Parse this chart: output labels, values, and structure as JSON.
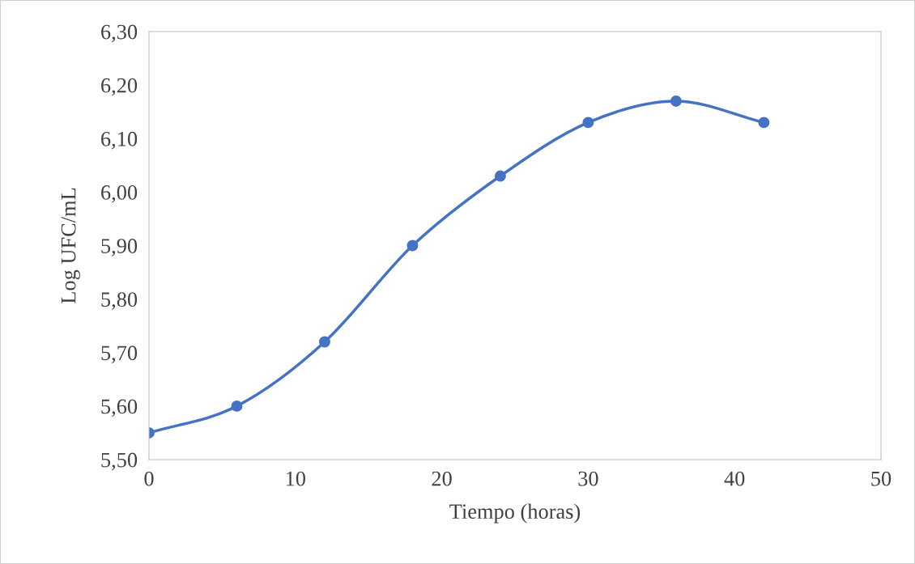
{
  "chart_data": {
    "type": "line",
    "xlabel": "Tiempo (horas)",
    "ylabel": "Log UFC/mL",
    "x": [
      0,
      6,
      12,
      18,
      24,
      30,
      36,
      42
    ],
    "series": [
      {
        "color": "#4472c4",
        "values": [
          5.55,
          5.6,
          5.72,
          5.9,
          6.03,
          6.13,
          6.17,
          6.13
        ]
      }
    ],
    "xlim": [
      0,
      50
    ],
    "xticks": [
      0,
      10,
      20,
      30,
      40,
      50
    ],
    "ylim": [
      5.5,
      6.3
    ],
    "yticks": [
      {
        "value": 5.5,
        "label": "5,50"
      },
      {
        "value": 5.6,
        "label": "5,60"
      },
      {
        "value": 5.7,
        "label": "5,70"
      },
      {
        "value": 5.8,
        "label": "5,80"
      },
      {
        "value": 5.9,
        "label": "5,90"
      },
      {
        "value": 6.0,
        "label": "6,00"
      },
      {
        "value": 6.1,
        "label": "6,10"
      },
      {
        "value": 6.2,
        "label": "6,20"
      },
      {
        "value": 6.3,
        "label": "6,30"
      }
    ],
    "marker": "circle",
    "line_style": "solid",
    "grid": false,
    "legend": false
  }
}
